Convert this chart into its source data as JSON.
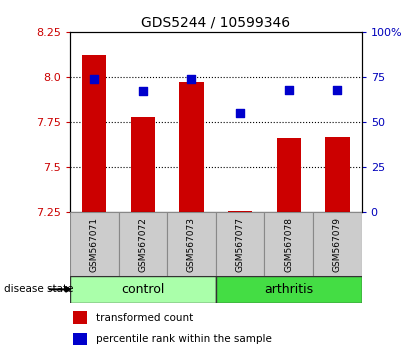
{
  "title": "GDS5244 / 10599346",
  "samples": [
    "GSM567071",
    "GSM567072",
    "GSM567073",
    "GSM567077",
    "GSM567078",
    "GSM567079"
  ],
  "groups": [
    "control",
    "control",
    "control",
    "arthritis",
    "arthritis",
    "arthritis"
  ],
  "transformed_count": [
    8.12,
    7.78,
    7.97,
    7.26,
    7.66,
    7.67
  ],
  "percentile_rank": [
    74,
    67,
    74,
    55,
    68,
    68
  ],
  "ylim_left": [
    7.25,
    8.25
  ],
  "ylim_right": [
    0,
    100
  ],
  "yticks_left": [
    7.25,
    7.5,
    7.75,
    8.0,
    8.25
  ],
  "yticks_right": [
    0,
    25,
    50,
    75,
    100
  ],
  "bar_color": "#cc0000",
  "dot_color": "#0000cc",
  "control_color": "#aaffaa",
  "arthritis_color": "#44dd44",
  "label_bg_color": "#cccccc",
  "group_label": "disease state",
  "legend_bar": "transformed count",
  "legend_dot": "percentile rank within the sample",
  "tick_color_left": "#cc0000",
  "tick_color_right": "#0000bb",
  "bar_width": 0.5,
  "dot_size": 35,
  "title_fontsize": 10,
  "tick_fontsize": 8,
  "sample_fontsize": 6.5,
  "group_fontsize": 9,
  "legend_fontsize": 7.5
}
